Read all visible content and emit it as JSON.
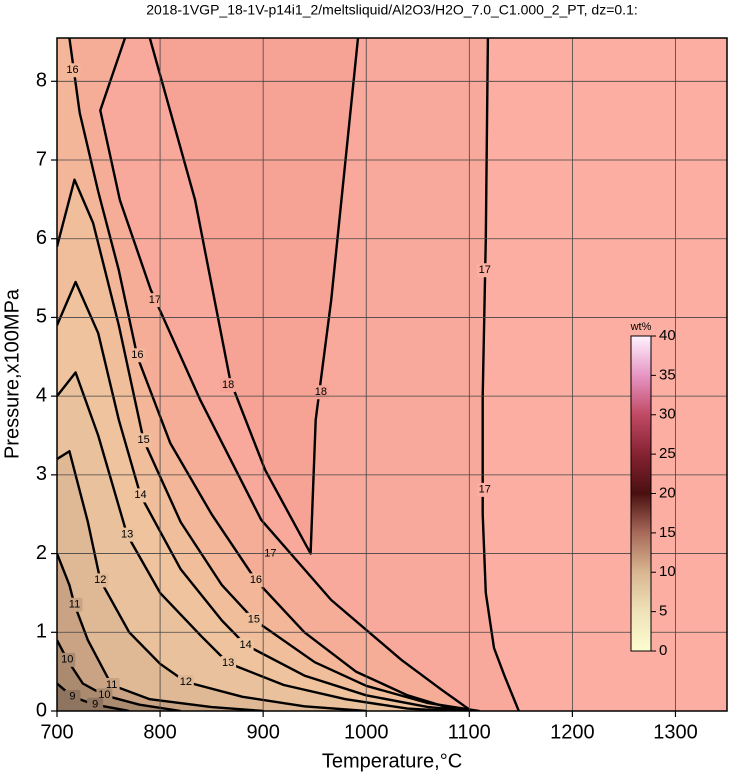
{
  "chart_data": {
    "type": "contour",
    "title": "2018-1VGP_18-1V-p14i1_2/meltsliquid/Al2O3/H2O_7.0_C1.000_2_PT, dz=0.1:",
    "x_label": "Temperature,°C",
    "y_label": "Pressure,x100MPa",
    "xlim": [
      700,
      1350
    ],
    "ylim": [
      0,
      8.55
    ],
    "xticks": [
      700,
      800,
      900,
      1000,
      1100,
      1200,
      1300
    ],
    "yticks": [
      0,
      1,
      2,
      3,
      4,
      5,
      6,
      7,
      8
    ],
    "grid": true,
    "background": "#f9a99b",
    "contours": [
      {
        "level": 18,
        "color": "#f6a295",
        "closed": true,
        "x": [
          790,
          834,
          868,
          902,
          946,
          951,
          966,
          992
        ],
        "y": [
          8.55,
          6.49,
          4.2,
          3.06,
          2.0,
          3.7,
          5.22,
          8.55
        ],
        "label_x": [
          866,
          956
        ],
        "label_y": [
          4.14,
          4.05
        ]
      },
      {
        "level": 17,
        "color": "#fbaea1",
        "side": "right",
        "x": [
          1118,
          1116,
          1113,
          1113,
          1116,
          1124,
          1134,
          1148
        ],
        "y": [
          8.55,
          6,
          4,
          2.5,
          1.5,
          0.8,
          0.45,
          0
        ],
        "label_x": [
          1115,
          1115
        ],
        "label_y": [
          5.6,
          2.81
        ]
      },
      {
        "level": 17,
        "color": "#f5ad97",
        "side": "left",
        "x": [
          766,
          742,
          761,
          791,
          839,
          898,
          966,
          1034,
          1073,
          1102
        ],
        "y": [
          8.55,
          7.63,
          6.49,
          5.35,
          3.95,
          2.43,
          1.41,
          0.65,
          0.27,
          0
        ],
        "label_x": [
          795,
          907
        ],
        "label_y": [
          5.22,
          2.0
        ]
      },
      {
        "level": 16,
        "color": "#f3b699",
        "side": "left",
        "x": [
          712,
          722,
          740,
          760,
          778,
          810,
          850,
          893,
          940,
          990,
          1040,
          1090
        ],
        "y": [
          8.55,
          7.6,
          6.6,
          5.6,
          4.5,
          3.4,
          2.5,
          1.66,
          1.0,
          0.5,
          0.2,
          0
        ],
        "label_x": [
          715,
          778,
          893
        ],
        "label_y": [
          8.14,
          4.52,
          1.66
        ]
      },
      {
        "level": 15,
        "color": "#f1be9c",
        "side": "left",
        "x": [
          700,
          717,
          735,
          760,
          784,
          820,
          860,
          891,
          950,
          1000,
          1060,
          1110
        ],
        "y": [
          5.9,
          6.75,
          6.2,
          4.9,
          3.44,
          2.4,
          1.6,
          1.16,
          0.62,
          0.32,
          0.1,
          0
        ],
        "label_x": [
          784,
          891
        ],
        "label_y": [
          3.44,
          1.16
        ]
      },
      {
        "level": 14,
        "color": "#eec39e",
        "side": "left",
        "x": [
          700,
          718,
          740,
          760,
          781,
          820,
          860,
          883,
          940,
          1000,
          1060,
          1100
        ],
        "y": [
          4.9,
          5.45,
          4.8,
          3.7,
          2.74,
          1.8,
          1.15,
          0.84,
          0.45,
          0.2,
          0.05,
          0
        ],
        "label_x": [
          781,
          883
        ],
        "label_y": [
          2.74,
          0.84
        ]
      },
      {
        "level": 13,
        "color": "#e9c29d",
        "side": "left",
        "x": [
          700,
          718,
          740,
          768,
          800,
          840,
          866,
          920,
          980,
          1040,
          1080
        ],
        "y": [
          4.0,
          4.3,
          3.5,
          2.24,
          1.5,
          0.95,
          0.61,
          0.33,
          0.15,
          0.03,
          0
        ],
        "label_x": [
          768,
          866
        ],
        "label_y": [
          2.24,
          0.61
        ]
      },
      {
        "level": 12,
        "color": "#dfb895",
        "side": "left",
        "x": [
          700,
          712,
          730,
          742,
          770,
          800,
          825,
          880,
          940,
          1000
        ],
        "y": [
          3.2,
          3.3,
          2.4,
          1.66,
          1.0,
          0.6,
          0.37,
          0.18,
          0.06,
          0
        ],
        "label_x": [
          742,
          825
        ],
        "label_y": [
          1.66,
          0.37
        ]
      },
      {
        "level": 11,
        "color": "#c9a384",
        "side": "left",
        "x": [
          700,
          712,
          717,
          730,
          753,
          790,
          850,
          900
        ],
        "y": [
          2.0,
          1.6,
          1.35,
          0.9,
          0.33,
          0.15,
          0.05,
          0
        ],
        "label_x": [
          717,
          753
        ],
        "label_y": [
          1.35,
          0.33
        ]
      },
      {
        "level": 10,
        "color": "#ab8b70",
        "side": "left",
        "x": [
          700,
          710,
          725,
          746,
          780,
          820
        ],
        "y": [
          0.9,
          0.65,
          0.35,
          0.2,
          0.08,
          0
        ],
        "label_x": [
          710,
          746
        ],
        "label_y": [
          0.65,
          0.2
        ]
      },
      {
        "level": 9,
        "color": "#8f7560",
        "side": "left",
        "x": [
          700,
          715,
          737,
          770
        ],
        "y": [
          0.35,
          0.18,
          0.08,
          0
        ],
        "label_x": [
          715,
          737
        ],
        "label_y": [
          0.18,
          0.08
        ]
      }
    ],
    "colorbar": {
      "label": "wt%",
      "lim": [
        0,
        40
      ],
      "ticks": [
        0,
        5,
        10,
        15,
        20,
        25,
        30,
        35,
        40
      ],
      "colors": [
        "#fdfdd0",
        "#efe2b8",
        "#d9b691",
        "#a86a5a",
        "#4a1010",
        "#862232",
        "#c04a64",
        "#e795c4",
        "#fff2ff"
      ]
    }
  }
}
